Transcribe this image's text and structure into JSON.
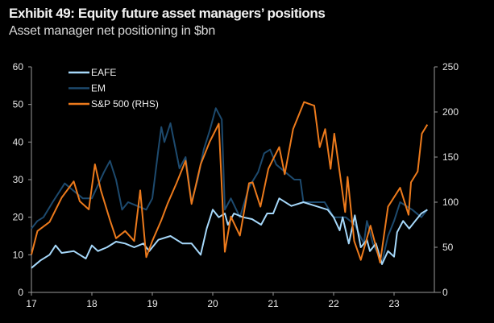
{
  "header": {
    "title": "Exhibit 49: Equity future asset managers’ positions",
    "subtitle": "Asset manager net positioning in $bn"
  },
  "chart_data": {
    "type": "line",
    "title": "Exhibit 49: Equity future asset managers’ positions",
    "subtitle": "Asset manager net positioning in $bn",
    "xlabel": "",
    "ylabel": "",
    "xlim": [
      17,
      23.7
    ],
    "xticks": [
      17,
      18,
      19,
      20,
      21,
      22,
      23
    ],
    "xtick_labels": [
      "17",
      "18",
      "19",
      "20",
      "21",
      "22",
      "23"
    ],
    "ylim_left": [
      0,
      60
    ],
    "yticks_left": [
      0,
      10,
      20,
      30,
      40,
      50,
      60
    ],
    "ylim_right": [
      0,
      250
    ],
    "yticks_right": [
      0,
      50,
      100,
      150,
      200,
      250
    ],
    "grid": false,
    "legend_position": "top-left",
    "colors": {
      "EAFE": "#a6d8fa",
      "EM": "#1d4a6e",
      "S&P 500 (RHS)": "#ec7a1c",
      "axis": "#9a9a9a"
    },
    "series": [
      {
        "name": "EM",
        "axis": "left",
        "x": [
          17.0,
          17.1,
          17.2,
          17.35,
          17.55,
          17.7,
          17.85,
          18.0,
          18.2,
          18.3,
          18.4,
          18.5,
          18.6,
          18.75,
          18.9,
          19.0,
          19.1,
          19.15,
          19.2,
          19.3,
          19.45,
          19.55,
          19.65,
          19.75,
          19.85,
          19.95,
          20.05,
          20.15,
          20.2,
          20.3,
          20.45,
          20.6,
          20.75,
          20.85,
          20.95,
          21.05,
          21.2,
          21.35,
          21.45,
          21.5,
          21.7,
          21.85,
          22.0,
          22.2,
          22.35,
          22.5,
          22.55,
          22.65,
          22.8,
          22.9,
          23.0,
          23.1,
          23.2,
          23.3,
          23.45,
          23.55
        ],
        "y": [
          17,
          19,
          20,
          24,
          29,
          27,
          25,
          25,
          32,
          35,
          30,
          22,
          24,
          23,
          22,
          25,
          38,
          44,
          40,
          45,
          33,
          36,
          24,
          30,
          38,
          43,
          49,
          46,
          22,
          25,
          20,
          28,
          32,
          37,
          38,
          34,
          32,
          30,
          30,
          24,
          24,
          24,
          20,
          20,
          18,
          13,
          19,
          13,
          8,
          15,
          19,
          24,
          23,
          22,
          20,
          22
        ]
      },
      {
        "name": "EAFE",
        "axis": "left",
        "x": [
          17.0,
          17.15,
          17.3,
          17.4,
          17.5,
          17.7,
          17.8,
          17.9,
          18.0,
          18.1,
          18.25,
          18.4,
          18.55,
          18.7,
          18.85,
          18.95,
          19.1,
          19.3,
          19.5,
          19.65,
          19.8,
          19.9,
          20.0,
          20.1,
          20.2,
          20.25,
          20.35,
          20.5,
          20.65,
          20.8,
          20.9,
          21.0,
          21.1,
          21.3,
          21.5,
          21.7,
          21.9,
          22.0,
          22.1,
          22.15,
          22.25,
          22.35,
          22.45,
          22.55,
          22.6,
          22.7,
          22.8,
          22.9,
          23.0,
          23.05,
          23.15,
          23.25,
          23.35,
          23.45,
          23.55
        ],
        "y": [
          6.5,
          8.5,
          10,
          12.5,
          10.5,
          11,
          10,
          9,
          12.5,
          11,
          12,
          13.5,
          13,
          12,
          13,
          11,
          14,
          15,
          13,
          13,
          10,
          17,
          22,
          20,
          21,
          18,
          21,
          20,
          19.5,
          18,
          21,
          21,
          25,
          23,
          24,
          23,
          22,
          20,
          16.5,
          20,
          13,
          20.5,
          12,
          14,
          11,
          13,
          7.5,
          11,
          9.5,
          16,
          19,
          17,
          19,
          21,
          22
        ]
      },
      {
        "name": "S&P 500 (RHS)",
        "axis": "right",
        "x": [
          17.0,
          17.1,
          17.3,
          17.5,
          17.7,
          17.8,
          17.95,
          18.05,
          18.15,
          18.3,
          18.4,
          18.55,
          18.7,
          18.8,
          18.9,
          19.0,
          19.15,
          19.25,
          19.4,
          19.55,
          19.65,
          19.8,
          19.95,
          20.1,
          20.2,
          20.3,
          20.45,
          20.6,
          20.66,
          20.79,
          20.92,
          21.03,
          21.1,
          21.19,
          21.33,
          21.51,
          21.68,
          21.77,
          21.86,
          21.95,
          22.01,
          22.08,
          22.19,
          22.23,
          22.34,
          22.45,
          22.61,
          22.77,
          22.9,
          23.1,
          23.24,
          23.28,
          23.39,
          23.46,
          23.55
        ],
        "y": [
          42,
          68,
          78,
          105,
          123,
          101,
          92,
          142,
          113,
          80,
          60,
          68,
          57,
          113,
          39,
          57,
          80,
          98,
          121,
          146,
          98,
          142,
          167,
          187,
          45,
          84,
          63,
          121,
          122,
          95,
          137,
          152,
          161,
          131,
          181,
          211,
          207,
          161,
          181,
          137,
          176,
          143,
          89,
          128,
          57,
          36,
          74,
          33,
          95,
          116,
          86,
          122,
          134,
          176,
          186
        ]
      }
    ]
  }
}
